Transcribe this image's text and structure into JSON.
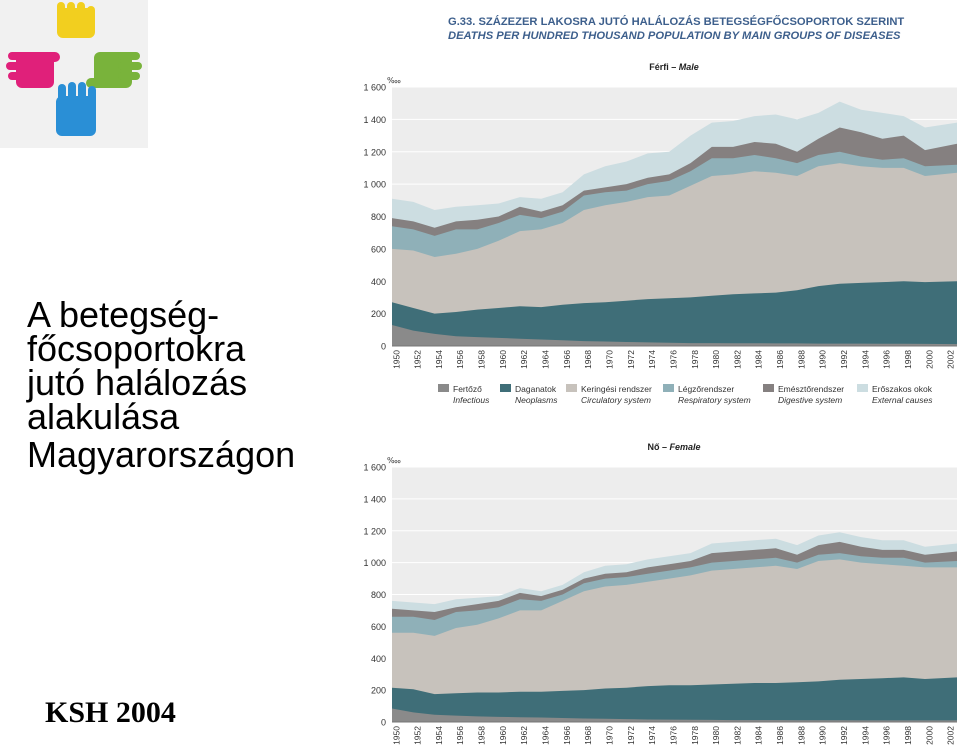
{
  "slide": {
    "title_lines": [
      "A betegség-",
      "főcsoportokra",
      "jutó halálozás",
      "alakulása",
      "Magyarországon"
    ],
    "source": "KSH 2004",
    "logo_icon": "four-hands-cross-logo"
  },
  "figure": {
    "title_hu": "G.33. SZÁZEZER LAKOSRA JUTÓ HALÁLOZÁS BETEGSÉGFŐCSOPORTOK SZERINT",
    "title_en": "DEATHS PER HUNDRED THOUSAND POPULATION BY MAIN GROUPS OF DISEASES",
    "heading_color": "#3d5f8c"
  },
  "legend": [
    {
      "hu": "Fertőző",
      "en": "Infectious",
      "color": "#8a8a8a"
    },
    {
      "hu": "Daganatok",
      "en": "Neoplasms",
      "color": "#3f6e78"
    },
    {
      "hu": "Keringési rendszer",
      "en": "Circulatory system",
      "color": "#c7c2bc"
    },
    {
      "hu": "Légzőrendszer",
      "en": "Respiratory system",
      "color": "#8fb0b8"
    },
    {
      "hu": "Emésztőrendszer",
      "en": "Digestive system",
      "color": "#858080"
    },
    {
      "hu": "Erőszakos okok",
      "en": "External causes",
      "color": "#ccdde1"
    }
  ],
  "chart_data": [
    {
      "type": "area",
      "stacked": true,
      "title_hu": "Férfi",
      "title_en": "Male",
      "unit": "‱",
      "ylim": [
        0,
        1600
      ],
      "yticks": [
        "0",
        "200",
        "400",
        "600",
        "800",
        "1 000",
        "1 200",
        "1 400",
        "1 600"
      ],
      "x_range": [
        1950,
        2003
      ],
      "xtick_labels": [
        "1950",
        "1952",
        "1954",
        "1956",
        "1958",
        "1960",
        "1962",
        "1964",
        "1966",
        "1968",
        "1970",
        "1972",
        "1974",
        "1976",
        "1978",
        "1980",
        "1982",
        "1984",
        "1986",
        "1988",
        "1990",
        "1992",
        "1994",
        "1996",
        "1998",
        "2000",
        "2002"
      ],
      "grid": true,
      "x": [
        1950,
        1952,
        1954,
        1956,
        1958,
        1960,
        1962,
        1964,
        1966,
        1968,
        1970,
        1972,
        1974,
        1976,
        1978,
        1980,
        1982,
        1984,
        1986,
        1988,
        1990,
        1992,
        1994,
        1996,
        1998,
        2000,
        2003
      ],
      "series": [
        {
          "name": "Fertőző",
          "values": [
            130,
            95,
            75,
            60,
            55,
            50,
            45,
            40,
            35,
            30,
            28,
            25,
            22,
            20,
            18,
            18,
            17,
            17,
            16,
            16,
            15,
            15,
            15,
            14,
            14,
            13,
            12
          ]
        },
        {
          "name": "Daganatok",
          "values": [
            270,
            235,
            200,
            210,
            225,
            235,
            245,
            240,
            255,
            265,
            270,
            280,
            290,
            295,
            300,
            310,
            320,
            325,
            330,
            345,
            370,
            385,
            390,
            395,
            400,
            395,
            400
          ]
        },
        {
          "name": "Keringési rendszer",
          "values": [
            600,
            590,
            550,
            570,
            600,
            650,
            710,
            720,
            760,
            840,
            870,
            890,
            920,
            930,
            990,
            1050,
            1060,
            1080,
            1070,
            1050,
            1110,
            1130,
            1110,
            1100,
            1100,
            1050,
            1070
          ]
        },
        {
          "name": "Légzőrendszer",
          "values": [
            740,
            720,
            680,
            720,
            720,
            760,
            810,
            790,
            830,
            930,
            950,
            960,
            1000,
            1020,
            1080,
            1160,
            1160,
            1180,
            1160,
            1130,
            1180,
            1200,
            1170,
            1150,
            1160,
            1110,
            1120
          ]
        },
        {
          "name": "Emésztőrendszer",
          "values": [
            790,
            770,
            730,
            770,
            780,
            800,
            860,
            830,
            870,
            960,
            980,
            1000,
            1040,
            1060,
            1130,
            1230,
            1230,
            1260,
            1250,
            1200,
            1280,
            1350,
            1320,
            1280,
            1300,
            1210,
            1250
          ]
        },
        {
          "name": "Erőszakos okok",
          "values": [
            910,
            890,
            840,
            860,
            870,
            880,
            920,
            910,
            950,
            1060,
            1110,
            1140,
            1190,
            1200,
            1300,
            1380,
            1390,
            1420,
            1430,
            1400,
            1440,
            1510,
            1460,
            1440,
            1420,
            1350,
            1380
          ]
        }
      ]
    },
    {
      "type": "area",
      "stacked": true,
      "title_hu": "Nő",
      "title_en": "Female",
      "unit": "‱",
      "ylim": [
        0,
        1600
      ],
      "yticks": [
        "0",
        "200",
        "400",
        "600",
        "800",
        "1 000",
        "1 200",
        "1 400",
        "1 600"
      ],
      "x_range": [
        1950,
        2003
      ],
      "xtick_labels": [
        "1950",
        "1952",
        "1954",
        "1956",
        "1958",
        "1960",
        "1962",
        "1964",
        "1966",
        "1968",
        "1970",
        "1972",
        "1974",
        "1976",
        "1978",
        "1980",
        "1982",
        "1984",
        "1986",
        "1988",
        "1990",
        "1992",
        "1994",
        "1996",
        "1998",
        "2000",
        "2002"
      ],
      "grid": true,
      "x": [
        1950,
        1952,
        1954,
        1956,
        1958,
        1960,
        1962,
        1964,
        1966,
        1968,
        1970,
        1972,
        1974,
        1976,
        1978,
        1980,
        1982,
        1984,
        1986,
        1988,
        1990,
        1992,
        1994,
        1996,
        1998,
        2000,
        2003
      ],
      "series": [
        {
          "name": "Fertőző",
          "values": [
            85,
            60,
            45,
            40,
            35,
            32,
            30,
            28,
            25,
            22,
            20,
            18,
            16,
            15,
            14,
            13,
            12,
            12,
            12,
            11,
            11,
            11,
            10,
            10,
            10,
            10,
            10
          ]
        },
        {
          "name": "Daganatok",
          "values": [
            215,
            205,
            175,
            180,
            185,
            185,
            190,
            190,
            195,
            200,
            210,
            215,
            225,
            230,
            230,
            235,
            240,
            245,
            245,
            250,
            255,
            265,
            270,
            275,
            280,
            270,
            280
          ]
        },
        {
          "name": "Keringési rendszer",
          "values": [
            560,
            560,
            540,
            590,
            610,
            650,
            700,
            700,
            760,
            820,
            850,
            860,
            880,
            900,
            920,
            950,
            960,
            970,
            980,
            960,
            1010,
            1020,
            1000,
            990,
            980,
            970,
            970
          ]
        },
        {
          "name": "Légzőrendszer",
          "values": [
            660,
            660,
            640,
            690,
            700,
            720,
            770,
            760,
            800,
            870,
            900,
            910,
            930,
            950,
            970,
            1000,
            1010,
            1020,
            1030,
            1000,
            1050,
            1060,
            1040,
            1030,
            1030,
            1000,
            1010
          ]
        },
        {
          "name": "Emésztőrendszer",
          "values": [
            710,
            700,
            690,
            720,
            740,
            760,
            810,
            790,
            830,
            900,
            930,
            940,
            970,
            990,
            1010,
            1060,
            1070,
            1080,
            1090,
            1050,
            1110,
            1130,
            1100,
            1080,
            1080,
            1050,
            1070
          ]
        },
        {
          "name": "Erőszakos okok",
          "values": [
            760,
            750,
            740,
            770,
            780,
            790,
            840,
            820,
            860,
            940,
            980,
            990,
            1020,
            1040,
            1060,
            1120,
            1130,
            1140,
            1150,
            1110,
            1170,
            1190,
            1160,
            1140,
            1140,
            1100,
            1120
          ]
        }
      ]
    }
  ]
}
